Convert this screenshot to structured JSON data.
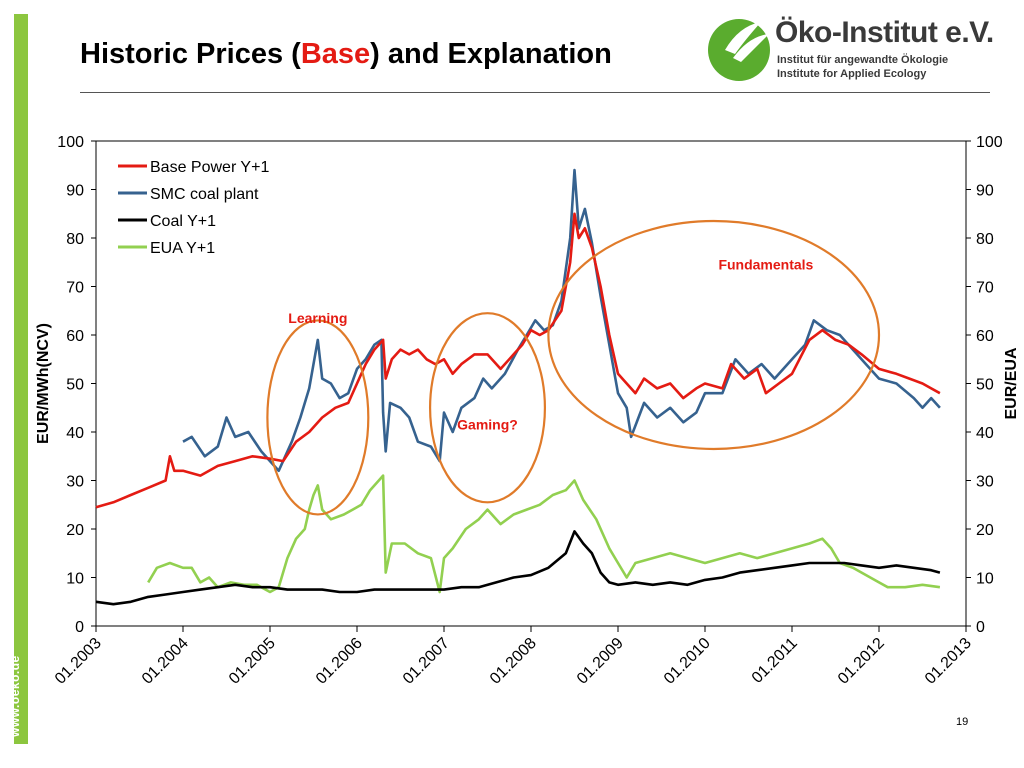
{
  "slide": {
    "title_before": "Historic Prices (",
    "title_highlight": "Base",
    "title_after": ") and Explanation",
    "logo_name": "Öko-Institut e.V.",
    "logo_line1": "Institut für angewandte Ökologie",
    "logo_line2": "Institute for Applied Ecology",
    "side_url": "www.oeko.de",
    "page_number": "19",
    "colors": {
      "accent_green": "#8cc63f",
      "title_highlight": "#e41b13",
      "logo_green": "#5aac2e"
    }
  },
  "chart_data": {
    "type": "line",
    "title": "",
    "xlabel": "",
    "ylabel_left": "EUR/MWh(NCV)",
    "ylabel_right": "EUR/EUA",
    "xlim": [
      2003.0,
      2013.0
    ],
    "ylim": [
      0,
      100
    ],
    "yticks": [
      0,
      10,
      20,
      30,
      40,
      50,
      60,
      70,
      80,
      90,
      100
    ],
    "xtick_labels": [
      "01.2003",
      "01.2004",
      "01.2005",
      "01.2006",
      "01.2007",
      "01.2008",
      "01.2009",
      "01.2010",
      "01.2011",
      "01.2012",
      "01.2013"
    ],
    "xtick_values": [
      2003,
      2004,
      2005,
      2006,
      2007,
      2008,
      2009,
      2010,
      2011,
      2012,
      2013
    ],
    "grid": false,
    "legend_position": "top-left",
    "series": [
      {
        "name": "Base Power Y+1",
        "color": "#e41b13",
        "points": [
          [
            2003.0,
            24.5
          ],
          [
            2003.2,
            25.5
          ],
          [
            2003.4,
            27
          ],
          [
            2003.6,
            28.5
          ],
          [
            2003.8,
            30
          ],
          [
            2003.85,
            35
          ],
          [
            2003.9,
            32
          ],
          [
            2004.0,
            32
          ],
          [
            2004.2,
            31
          ],
          [
            2004.4,
            33
          ],
          [
            2004.6,
            34
          ],
          [
            2004.8,
            35
          ],
          [
            2005.0,
            34.5
          ],
          [
            2005.15,
            34
          ],
          [
            2005.3,
            38
          ],
          [
            2005.45,
            40
          ],
          [
            2005.6,
            43
          ],
          [
            2005.75,
            45
          ],
          [
            2005.9,
            46
          ],
          [
            2006.0,
            50
          ],
          [
            2006.1,
            54
          ],
          [
            2006.2,
            57
          ],
          [
            2006.3,
            59
          ],
          [
            2006.33,
            51
          ],
          [
            2006.4,
            55
          ],
          [
            2006.5,
            57
          ],
          [
            2006.6,
            56
          ],
          [
            2006.7,
            57
          ],
          [
            2006.8,
            55
          ],
          [
            2006.9,
            54
          ],
          [
            2007.0,
            55
          ],
          [
            2007.1,
            52
          ],
          [
            2007.2,
            54
          ],
          [
            2007.35,
            56
          ],
          [
            2007.5,
            56
          ],
          [
            2007.65,
            53
          ],
          [
            2007.8,
            56
          ],
          [
            2007.9,
            58
          ],
          [
            2008.0,
            61
          ],
          [
            2008.1,
            60
          ],
          [
            2008.2,
            61
          ],
          [
            2008.35,
            65
          ],
          [
            2008.45,
            75
          ],
          [
            2008.5,
            85
          ],
          [
            2008.55,
            80
          ],
          [
            2008.62,
            82
          ],
          [
            2008.7,
            78
          ],
          [
            2008.8,
            70
          ],
          [
            2008.9,
            60
          ],
          [
            2009.0,
            52
          ],
          [
            2009.1,
            50
          ],
          [
            2009.2,
            48
          ],
          [
            2009.3,
            51
          ],
          [
            2009.45,
            49
          ],
          [
            2009.6,
            50
          ],
          [
            2009.75,
            47
          ],
          [
            2009.9,
            49
          ],
          [
            2010.0,
            50
          ],
          [
            2010.2,
            49
          ],
          [
            2010.3,
            54
          ],
          [
            2010.45,
            51
          ],
          [
            2010.6,
            53
          ],
          [
            2010.7,
            48
          ],
          [
            2010.85,
            50
          ],
          [
            2011.0,
            52
          ],
          [
            2011.2,
            59
          ],
          [
            2011.35,
            61
          ],
          [
            2011.5,
            59
          ],
          [
            2011.65,
            58
          ],
          [
            2011.8,
            56
          ],
          [
            2012.0,
            53
          ],
          [
            2012.2,
            52
          ],
          [
            2012.35,
            51
          ],
          [
            2012.5,
            50
          ],
          [
            2012.6,
            49
          ],
          [
            2012.7,
            48
          ]
        ]
      },
      {
        "name": "SMC coal plant",
        "color": "#36628f",
        "points": [
          [
            2004.0,
            38
          ],
          [
            2004.1,
            39
          ],
          [
            2004.25,
            35
          ],
          [
            2004.4,
            37
          ],
          [
            2004.5,
            43
          ],
          [
            2004.6,
            39
          ],
          [
            2004.75,
            40
          ],
          [
            2004.9,
            36
          ],
          [
            2005.0,
            34
          ],
          [
            2005.1,
            32
          ],
          [
            2005.25,
            38
          ],
          [
            2005.35,
            43
          ],
          [
            2005.45,
            49
          ],
          [
            2005.55,
            59
          ],
          [
            2005.6,
            51
          ],
          [
            2005.7,
            50
          ],
          [
            2005.8,
            47
          ],
          [
            2005.9,
            48
          ],
          [
            2006.0,
            53
          ],
          [
            2006.1,
            55
          ],
          [
            2006.2,
            58
          ],
          [
            2006.28,
            59
          ],
          [
            2006.3,
            44
          ],
          [
            2006.33,
            36
          ],
          [
            2006.38,
            46
          ],
          [
            2006.5,
            45
          ],
          [
            2006.6,
            43
          ],
          [
            2006.7,
            38
          ],
          [
            2006.85,
            37
          ],
          [
            2006.95,
            34
          ],
          [
            2007.0,
            44
          ],
          [
            2007.1,
            40
          ],
          [
            2007.2,
            45
          ],
          [
            2007.35,
            47
          ],
          [
            2007.45,
            51
          ],
          [
            2007.55,
            49
          ],
          [
            2007.7,
            52
          ],
          [
            2007.85,
            57
          ],
          [
            2007.95,
            60
          ],
          [
            2008.05,
            63
          ],
          [
            2008.15,
            61
          ],
          [
            2008.25,
            62
          ],
          [
            2008.35,
            67
          ],
          [
            2008.45,
            80
          ],
          [
            2008.5,
            94
          ],
          [
            2008.55,
            82
          ],
          [
            2008.62,
            86
          ],
          [
            2008.7,
            79
          ],
          [
            2008.8,
            68
          ],
          [
            2008.9,
            58
          ],
          [
            2009.0,
            48
          ],
          [
            2009.1,
            45
          ],
          [
            2009.15,
            39
          ],
          [
            2009.3,
            46
          ],
          [
            2009.45,
            43
          ],
          [
            2009.6,
            45
          ],
          [
            2009.75,
            42
          ],
          [
            2009.9,
            44
          ],
          [
            2010.0,
            48
          ],
          [
            2010.2,
            48
          ],
          [
            2010.35,
            55
          ],
          [
            2010.5,
            52
          ],
          [
            2010.65,
            54
          ],
          [
            2010.8,
            51
          ],
          [
            2011.0,
            55
          ],
          [
            2011.15,
            58
          ],
          [
            2011.25,
            63
          ],
          [
            2011.4,
            61
          ],
          [
            2011.55,
            60
          ],
          [
            2011.7,
            57
          ],
          [
            2011.85,
            54
          ],
          [
            2012.0,
            51
          ],
          [
            2012.2,
            50
          ],
          [
            2012.4,
            47
          ],
          [
            2012.5,
            45
          ],
          [
            2012.6,
            47
          ],
          [
            2012.7,
            45
          ]
        ]
      },
      {
        "name": "Coal Y+1",
        "color": "#000000",
        "points": [
          [
            2003.0,
            5
          ],
          [
            2003.2,
            4.5
          ],
          [
            2003.4,
            5
          ],
          [
            2003.6,
            6
          ],
          [
            2003.8,
            6.5
          ],
          [
            2004.0,
            7
          ],
          [
            2004.2,
            7.5
          ],
          [
            2004.4,
            8
          ],
          [
            2004.6,
            8.5
          ],
          [
            2004.8,
            8
          ],
          [
            2005.0,
            8
          ],
          [
            2005.2,
            7.5
          ],
          [
            2005.4,
            7.5
          ],
          [
            2005.6,
            7.5
          ],
          [
            2005.8,
            7
          ],
          [
            2006.0,
            7
          ],
          [
            2006.2,
            7.5
          ],
          [
            2006.4,
            7.5
          ],
          [
            2006.6,
            7.5
          ],
          [
            2006.8,
            7.5
          ],
          [
            2007.0,
            7.5
          ],
          [
            2007.2,
            8
          ],
          [
            2007.4,
            8
          ],
          [
            2007.6,
            9
          ],
          [
            2007.8,
            10
          ],
          [
            2008.0,
            10.5
          ],
          [
            2008.2,
            12
          ],
          [
            2008.4,
            15
          ],
          [
            2008.5,
            19.5
          ],
          [
            2008.6,
            17
          ],
          [
            2008.7,
            15
          ],
          [
            2008.8,
            11
          ],
          [
            2008.9,
            9
          ],
          [
            2009.0,
            8.5
          ],
          [
            2009.2,
            9
          ],
          [
            2009.4,
            8.5
          ],
          [
            2009.6,
            9
          ],
          [
            2009.8,
            8.5
          ],
          [
            2010.0,
            9.5
          ],
          [
            2010.2,
            10
          ],
          [
            2010.4,
            11
          ],
          [
            2010.6,
            11.5
          ],
          [
            2010.8,
            12
          ],
          [
            2011.0,
            12.5
          ],
          [
            2011.2,
            13
          ],
          [
            2011.4,
            13
          ],
          [
            2011.6,
            13
          ],
          [
            2011.8,
            12.5
          ],
          [
            2012.0,
            12
          ],
          [
            2012.2,
            12.5
          ],
          [
            2012.4,
            12
          ],
          [
            2012.6,
            11.5
          ],
          [
            2012.7,
            11
          ]
        ]
      },
      {
        "name": "EUA Y+1",
        "color": "#92d050",
        "points": [
          [
            2003.6,
            9
          ],
          [
            2003.7,
            12
          ],
          [
            2003.85,
            13
          ],
          [
            2004.0,
            12
          ],
          [
            2004.1,
            12
          ],
          [
            2004.2,
            9
          ],
          [
            2004.3,
            10
          ],
          [
            2004.4,
            8
          ],
          [
            2004.55,
            9
          ],
          [
            2004.7,
            8.5
          ],
          [
            2004.85,
            8.5
          ],
          [
            2005.0,
            7
          ],
          [
            2005.1,
            8
          ],
          [
            2005.2,
            14
          ],
          [
            2005.3,
            18
          ],
          [
            2005.4,
            20
          ],
          [
            2005.45,
            24
          ],
          [
            2005.5,
            27
          ],
          [
            2005.55,
            29
          ],
          [
            2005.6,
            24
          ],
          [
            2005.7,
            22
          ],
          [
            2005.85,
            23
          ],
          [
            2005.95,
            24
          ],
          [
            2006.05,
            25
          ],
          [
            2006.15,
            28
          ],
          [
            2006.25,
            30
          ],
          [
            2006.3,
            31
          ],
          [
            2006.33,
            11
          ],
          [
            2006.4,
            17
          ],
          [
            2006.55,
            17
          ],
          [
            2006.7,
            15
          ],
          [
            2006.85,
            14
          ],
          [
            2006.95,
            7
          ],
          [
            2007.0,
            14
          ],
          [
            2007.1,
            16
          ],
          [
            2007.25,
            20
          ],
          [
            2007.4,
            22
          ],
          [
            2007.5,
            24
          ],
          [
            2007.65,
            21
          ],
          [
            2007.8,
            23
          ],
          [
            2007.95,
            24
          ],
          [
            2008.1,
            25
          ],
          [
            2008.25,
            27
          ],
          [
            2008.4,
            28
          ],
          [
            2008.5,
            30
          ],
          [
            2008.6,
            26
          ],
          [
            2008.75,
            22
          ],
          [
            2008.9,
            16
          ],
          [
            2009.0,
            13
          ],
          [
            2009.1,
            10
          ],
          [
            2009.2,
            13
          ],
          [
            2009.4,
            14
          ],
          [
            2009.6,
            15
          ],
          [
            2009.8,
            14
          ],
          [
            2010.0,
            13
          ],
          [
            2010.2,
            14
          ],
          [
            2010.4,
            15
          ],
          [
            2010.6,
            14
          ],
          [
            2010.8,
            15
          ],
          [
            2011.0,
            16
          ],
          [
            2011.2,
            17
          ],
          [
            2011.35,
            18
          ],
          [
            2011.45,
            16
          ],
          [
            2011.55,
            13
          ],
          [
            2011.7,
            12
          ],
          [
            2011.9,
            10
          ],
          [
            2012.0,
            9
          ],
          [
            2012.1,
            8
          ],
          [
            2012.3,
            8
          ],
          [
            2012.5,
            8.5
          ],
          [
            2012.7,
            8
          ]
        ]
      }
    ],
    "annotations": [
      {
        "text": "Learning",
        "x": 2005.55,
        "y": 62.5
      },
      {
        "text": "Gaming?",
        "x": 2007.5,
        "y": 40.5
      },
      {
        "text": "Fundamentals",
        "x": 2010.7,
        "y": 73.5
      }
    ],
    "ellipses": [
      {
        "label": "Learning",
        "cx": 2005.55,
        "cy": 43,
        "rx_years": 0.58,
        "ry": 20,
        "color": "#e07b2a"
      },
      {
        "label": "Gaming?",
        "cx": 2007.5,
        "cy": 45,
        "rx_years": 0.66,
        "ry": 19.5,
        "color": "#e07b2a"
      },
      {
        "label": "Fundamentals",
        "cx": 2010.1,
        "cy": 60,
        "rx_years": 1.9,
        "ry": 23.5,
        "color": "#e07b2a"
      }
    ]
  }
}
